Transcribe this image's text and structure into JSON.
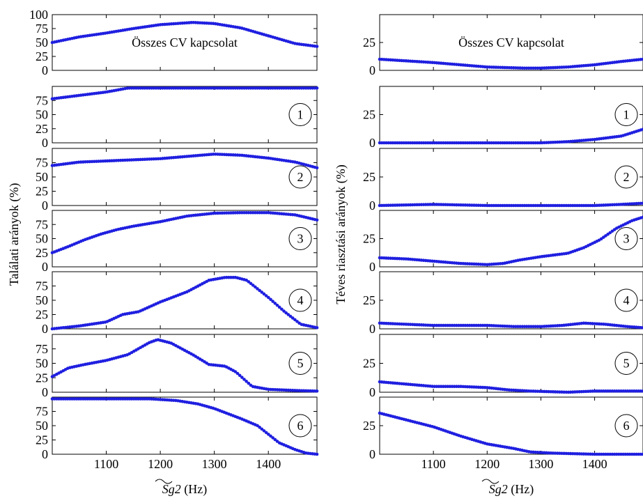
{
  "chart_data": [
    {
      "type": "scatter",
      "figure_side": "left",
      "ylabel": "Találati arányok (%)",
      "xlabel": "Sg2 (Hz)",
      "xlabel_parts": {
        "symbol": "Sg",
        "subscript_number": "2",
        "unit": "(Hz)"
      },
      "x": [
        1000,
        1490
      ],
      "xticks": [
        1100,
        1200,
        1300,
        1400
      ],
      "color": "#1f1fe0",
      "panels": [
        {
          "label": "Összes CV kapcsolat",
          "ylim": [
            0,
            100
          ],
          "yticks": [
            0,
            25,
            50,
            75,
            100
          ],
          "points": [
            [
              1000,
              50
            ],
            [
              1050,
              60
            ],
            [
              1100,
              67
            ],
            [
              1150,
              75
            ],
            [
              1200,
              82
            ],
            [
              1260,
              86
            ],
            [
              1300,
              84
            ],
            [
              1350,
              76
            ],
            [
              1400,
              62
            ],
            [
              1450,
              48
            ],
            [
              1490,
              43
            ]
          ]
        },
        {
          "label": "1",
          "ylim": [
            0,
            100
          ],
          "yticks": [
            0,
            25,
            50,
            75
          ],
          "points": [
            [
              1000,
              78
            ],
            [
              1050,
              84
            ],
            [
              1100,
              90
            ],
            [
              1140,
              97
            ],
            [
              1200,
              97
            ],
            [
              1300,
              97
            ],
            [
              1400,
              97
            ],
            [
              1490,
              97
            ]
          ]
        },
        {
          "label": "2",
          "ylim": [
            0,
            100
          ],
          "yticks": [
            0,
            25,
            50,
            75
          ],
          "points": [
            [
              1000,
              70
            ],
            [
              1050,
              76
            ],
            [
              1100,
              78
            ],
            [
              1150,
              80
            ],
            [
              1200,
              82
            ],
            [
              1250,
              86
            ],
            [
              1300,
              90
            ],
            [
              1350,
              88
            ],
            [
              1400,
              83
            ],
            [
              1450,
              76
            ],
            [
              1490,
              66
            ]
          ]
        },
        {
          "label": "3",
          "ylim": [
            0,
            100
          ],
          "yticks": [
            0,
            25,
            50,
            75
          ],
          "points": [
            [
              1000,
              25
            ],
            [
              1030,
              36
            ],
            [
              1060,
              48
            ],
            [
              1090,
              58
            ],
            [
              1120,
              66
            ],
            [
              1150,
              72
            ],
            [
              1200,
              80
            ],
            [
              1250,
              90
            ],
            [
              1300,
              95
            ],
            [
              1350,
              96
            ],
            [
              1400,
              96
            ],
            [
              1450,
              92
            ],
            [
              1490,
              83
            ]
          ]
        },
        {
          "label": "4",
          "ylim": [
            0,
            100
          ],
          "yticks": [
            0,
            25,
            50,
            75
          ],
          "points": [
            [
              1000,
              0
            ],
            [
              1050,
              5
            ],
            [
              1100,
              12
            ],
            [
              1130,
              25
            ],
            [
              1160,
              30
            ],
            [
              1200,
              47
            ],
            [
              1250,
              65
            ],
            [
              1290,
              85
            ],
            [
              1320,
              90
            ],
            [
              1340,
              90
            ],
            [
              1360,
              85
            ],
            [
              1400,
              55
            ],
            [
              1430,
              30
            ],
            [
              1460,
              8
            ],
            [
              1490,
              2
            ]
          ]
        },
        {
          "label": "5",
          "ylim": [
            0,
            100
          ],
          "yticks": [
            0,
            25,
            50,
            75
          ],
          "points": [
            [
              1000,
              27
            ],
            [
              1030,
              42
            ],
            [
              1060,
              48
            ],
            [
              1100,
              55
            ],
            [
              1140,
              65
            ],
            [
              1180,
              86
            ],
            [
              1195,
              91
            ],
            [
              1220,
              85
            ],
            [
              1260,
              65
            ],
            [
              1290,
              48
            ],
            [
              1320,
              45
            ],
            [
              1340,
              35
            ],
            [
              1370,
              10
            ],
            [
              1400,
              5
            ],
            [
              1450,
              3
            ],
            [
              1490,
              2
            ]
          ]
        },
        {
          "label": "6",
          "ylim": [
            0,
            100
          ],
          "yticks": [
            0,
            25,
            50,
            75
          ],
          "points": [
            [
              1000,
              97
            ],
            [
              1100,
              97
            ],
            [
              1180,
              97
            ],
            [
              1230,
              94
            ],
            [
              1270,
              88
            ],
            [
              1300,
              80
            ],
            [
              1350,
              62
            ],
            [
              1380,
              50
            ],
            [
              1420,
              20
            ],
            [
              1450,
              8
            ],
            [
              1470,
              2
            ],
            [
              1490,
              0
            ]
          ]
        }
      ]
    },
    {
      "type": "scatter",
      "figure_side": "right",
      "ylabel": "Téves riasztási arányok (%)",
      "xlabel": "Sg2 (Hz)",
      "xlabel_parts": {
        "symbol": "Sg",
        "subscript_number": "2",
        "unit": "(Hz)"
      },
      "x": [
        1000,
        1490
      ],
      "xticks": [
        1100,
        1200,
        1300,
        1400
      ],
      "color": "#1f1fe0",
      "panels": [
        {
          "label": "Összes CV kapcsolat",
          "ylim": [
            0,
            50
          ],
          "yticks": [
            0,
            25
          ],
          "points": [
            [
              1000,
              10
            ],
            [
              1100,
              7
            ],
            [
              1200,
              3
            ],
            [
              1270,
              2
            ],
            [
              1300,
              2
            ],
            [
              1350,
              3
            ],
            [
              1400,
              5
            ],
            [
              1450,
              8
            ],
            [
              1490,
              10
            ]
          ]
        },
        {
          "label": "1",
          "ylim": [
            0,
            50
          ],
          "yticks": [
            0,
            25
          ],
          "points": [
            [
              1000,
              0
            ],
            [
              1200,
              0
            ],
            [
              1300,
              0
            ],
            [
              1350,
              1
            ],
            [
              1400,
              3
            ],
            [
              1450,
              6
            ],
            [
              1490,
              12
            ]
          ]
        },
        {
          "label": "2",
          "ylim": [
            0,
            50
          ],
          "yticks": [
            0,
            25
          ],
          "points": [
            [
              1000,
              0
            ],
            [
              1100,
              1
            ],
            [
              1200,
              0
            ],
            [
              1300,
              0
            ],
            [
              1400,
              0
            ],
            [
              1450,
              1
            ],
            [
              1490,
              2
            ]
          ]
        },
        {
          "label": "3",
          "ylim": [
            0,
            50
          ],
          "yticks": [
            0,
            25
          ],
          "points": [
            [
              1000,
              8
            ],
            [
              1050,
              7
            ],
            [
              1100,
              5
            ],
            [
              1150,
              3
            ],
            [
              1200,
              2
            ],
            [
              1230,
              3
            ],
            [
              1260,
              6
            ],
            [
              1300,
              9
            ],
            [
              1350,
              12
            ],
            [
              1380,
              17
            ],
            [
              1410,
              24
            ],
            [
              1440,
              34
            ],
            [
              1470,
              41
            ],
            [
              1490,
              44
            ]
          ]
        },
        {
          "label": "4",
          "ylim": [
            0,
            50
          ],
          "yticks": [
            0,
            25
          ],
          "points": [
            [
              1000,
              5
            ],
            [
              1100,
              3
            ],
            [
              1200,
              3
            ],
            [
              1250,
              2
            ],
            [
              1300,
              2
            ],
            [
              1340,
              3
            ],
            [
              1380,
              5
            ],
            [
              1420,
              4
            ],
            [
              1460,
              2
            ],
            [
              1490,
              1
            ]
          ]
        },
        {
          "label": "5",
          "ylim": [
            0,
            50
          ],
          "yticks": [
            0,
            25
          ],
          "points": [
            [
              1000,
              9
            ],
            [
              1050,
              7
            ],
            [
              1100,
              5
            ],
            [
              1150,
              5
            ],
            [
              1200,
              4
            ],
            [
              1240,
              2
            ],
            [
              1280,
              1
            ],
            [
              1350,
              0
            ],
            [
              1400,
              1
            ],
            [
              1490,
              1
            ]
          ]
        },
        {
          "label": "6",
          "ylim": [
            0,
            50
          ],
          "yticks": [
            0,
            25
          ],
          "points": [
            [
              1000,
              36
            ],
            [
              1050,
              30
            ],
            [
              1100,
              24
            ],
            [
              1150,
              16
            ],
            [
              1200,
              9
            ],
            [
              1250,
              5
            ],
            [
              1280,
              2
            ],
            [
              1320,
              1
            ],
            [
              1400,
              0
            ],
            [
              1490,
              0
            ]
          ]
        }
      ]
    }
  ]
}
